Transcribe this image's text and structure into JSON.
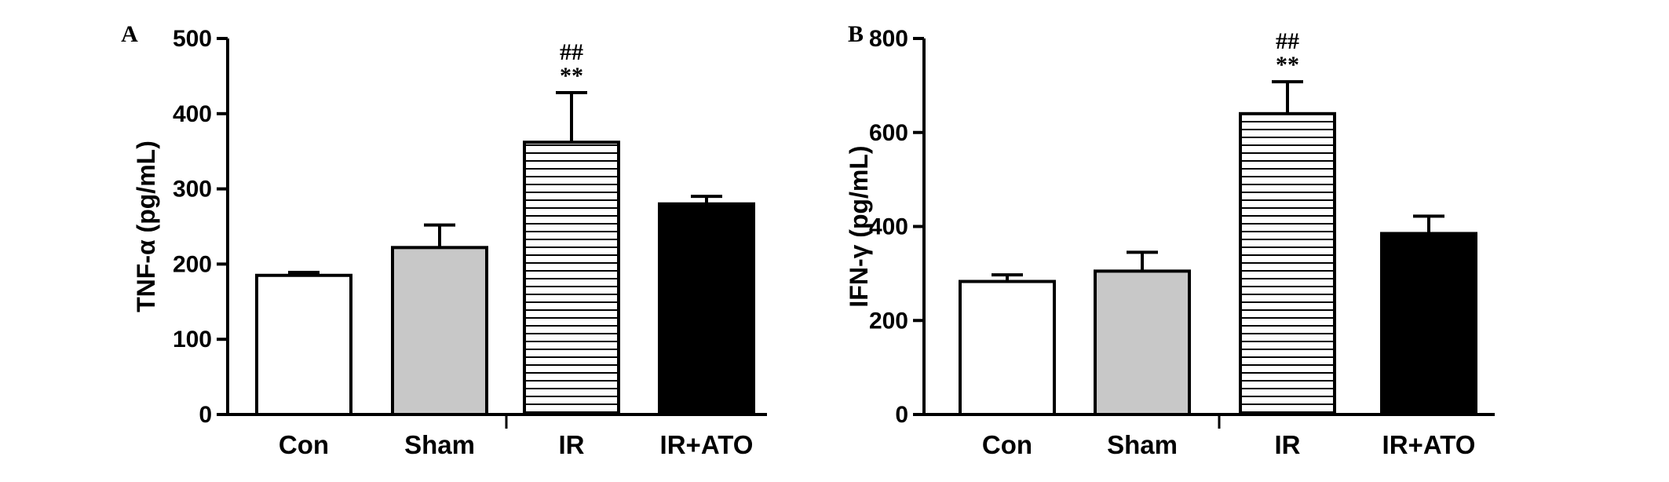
{
  "chart_data": [
    {
      "type": "bar",
      "panel_label": "A",
      "ylabel": "TNF-α (pg/mL)",
      "ylim": [
        0,
        500
      ],
      "yticks": [
        "0",
        "100",
        "200",
        "300",
        "400",
        "500"
      ],
      "categories": [
        "Con",
        "Sham",
        "IR",
        "IR+ATO"
      ],
      "values": [
        185,
        222,
        362,
        280
      ],
      "errors": [
        4,
        30,
        66,
        10
      ],
      "bar_styles": [
        "white",
        "gray",
        "hatched",
        "black"
      ],
      "annotations": [
        {
          "category": "IR",
          "lines": [
            "##",
            "**"
          ]
        }
      ]
    },
    {
      "type": "bar",
      "panel_label": "B",
      "ylabel": "IFN-γ (pg/mL)",
      "ylim": [
        0,
        800
      ],
      "yticks": [
        "0",
        "200",
        "400",
        "600",
        "800"
      ],
      "categories": [
        "Con",
        "Sham",
        "IR",
        "IR+ATO"
      ],
      "values": [
        283,
        305,
        640,
        385
      ],
      "errors": [
        14,
        40,
        68,
        37
      ],
      "bar_styles": [
        "white",
        "gray",
        "hatched",
        "black"
      ],
      "annotations": [
        {
          "category": "IR",
          "lines": [
            "##",
            "**"
          ]
        }
      ]
    }
  ],
  "colors": {
    "gray_bar": "#c8c8c8",
    "black_bar": "#000000",
    "white_bar": "#ffffff",
    "axis": "#000000"
  }
}
